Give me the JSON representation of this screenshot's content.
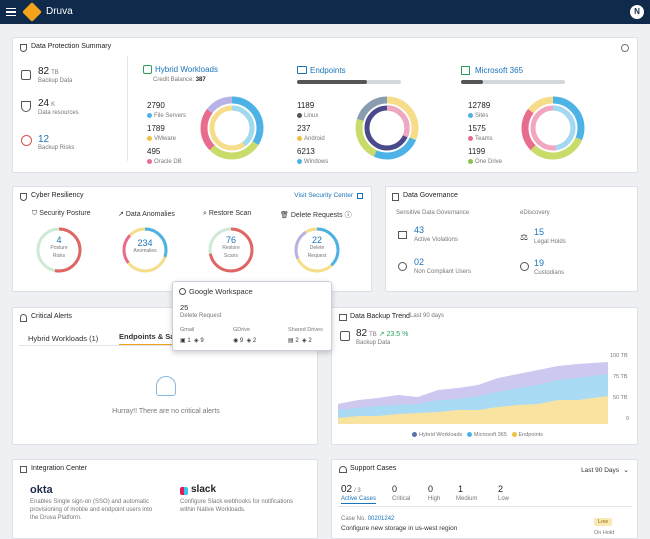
{
  "app": {
    "brand": "Druva",
    "avatar": "N"
  },
  "dps": {
    "title": "Data Protection Summary",
    "backup_data": {
      "value": "82",
      "unit": "TB",
      "label": "Backup Data"
    },
    "data_resources": {
      "value": "24",
      "unit": "K",
      "label": "Data resources"
    },
    "backup_risks": {
      "value": "12",
      "label": "Backup Risks"
    },
    "hybrid": {
      "title": "Hybrid Workloads",
      "credit_label": "Credit Balance:",
      "credit": "387",
      "items": [
        {
          "v": "2790",
          "l": "File Servers",
          "c": "#4db3e6"
        },
        {
          "v": "1789",
          "l": "VMware",
          "c": "#f0c040"
        },
        {
          "v": "495",
          "l": "Oracle DB",
          "c": "#e86d8c"
        }
      ]
    },
    "endpoints": {
      "title": "Endpoints",
      "items": [
        {
          "v": "1189",
          "l": "Linux",
          "c": "#555"
        },
        {
          "v": "237",
          "l": "Android",
          "c": "#f0c040"
        },
        {
          "v": "6213",
          "l": "Windows",
          "c": "#4db3e6"
        }
      ]
    },
    "m365": {
      "title": "Microsoft 365",
      "items": [
        {
          "v": "12789",
          "l": "Sites",
          "c": "#4db3e6"
        },
        {
          "v": "1575",
          "l": "Teams",
          "c": "#e86d8c"
        },
        {
          "v": "1199",
          "l": "One Drive",
          "c": "#8bc34a"
        }
      ]
    }
  },
  "cyber": {
    "title": "Cyber Resiliency",
    "link": "Visit Security Center",
    "cols": [
      {
        "title": "Security Posture",
        "v": "4",
        "l1": "Posture",
        "l2": "Risks"
      },
      {
        "title": "Data Anomalies",
        "v": "234",
        "l1": "Anomalies",
        "l2": ""
      },
      {
        "title": "Restore Scan",
        "v": "76",
        "l1": "Restore",
        "l2": "Scans"
      },
      {
        "title": "Delete Requests",
        "v": "22",
        "l1": "Delete",
        "l2": "Request"
      }
    ]
  },
  "gov": {
    "title": "Data Governance",
    "sec1": "Sensitive Data Governance",
    "sec2": "eDiscovery",
    "active": {
      "v": "43",
      "l": "Active Violations"
    },
    "noncomp": {
      "v": "02",
      "l": "Non Compliant Users"
    },
    "legal": {
      "v": "15",
      "l": "Legal Holds"
    },
    "cust": {
      "v": "19",
      "l": "Custodians"
    }
  },
  "popup": {
    "title": "Google Workspace",
    "v": "25",
    "l": "Delete Request",
    "cols": [
      {
        "h": "Gmail",
        "a": "1",
        "b": "9"
      },
      {
        "h": "GDrive",
        "a": "9",
        "b": "2"
      },
      {
        "h": "Shared Drives",
        "a": "2",
        "b": "2"
      }
    ]
  },
  "alerts": {
    "title": "Critical Alerts",
    "tab1": "Hybrid Workloads (1)",
    "tab2": "Endpoints & SaaS",
    "empty": "Hurray!! There are no critical alerts"
  },
  "trend": {
    "title": "Data Backup Trend",
    "period": "Last 90 days",
    "value": "82",
    "unit": "TB",
    "change": "23.5 %",
    "label": "Backup Data"
  },
  "chart_data": {
    "type": "area",
    "yticks": [
      "100 TB",
      "75 TB",
      "50 TB",
      "0"
    ],
    "series": [
      {
        "name": "Hybrid Workloads",
        "color": "#b8b3e6"
      },
      {
        "name": "Microsoft 365",
        "color": "#9fd9f2"
      },
      {
        "name": "Endpoints",
        "color": "#f6dd8a"
      }
    ]
  },
  "integration": {
    "title": "Integration Center",
    "okta": {
      "name": "okta",
      "desc": "Enables Single sign-on (SSO) and automatic provisioning of mobile and endpoint users into the Druva Platform."
    },
    "slack": {
      "name": "slack",
      "desc": "Configure Slack webhooks for notifications within Native Workloads."
    }
  },
  "support": {
    "title": "Support Cases",
    "period": "Last 90 Days",
    "active": "02",
    "total": "/ 3",
    "active_label": "Active Cases",
    "critical": "0",
    "critical_l": "Critical",
    "high": "0",
    "high_l": "High",
    "medium": "1",
    "medium_l": "Medium",
    "low": "2",
    "low_l": "Low",
    "case_label": "Case No.",
    "case_no": "00201242",
    "case_desc": "Configure new storage in us-west region",
    "badge": "Low",
    "status": "On Hold"
  }
}
